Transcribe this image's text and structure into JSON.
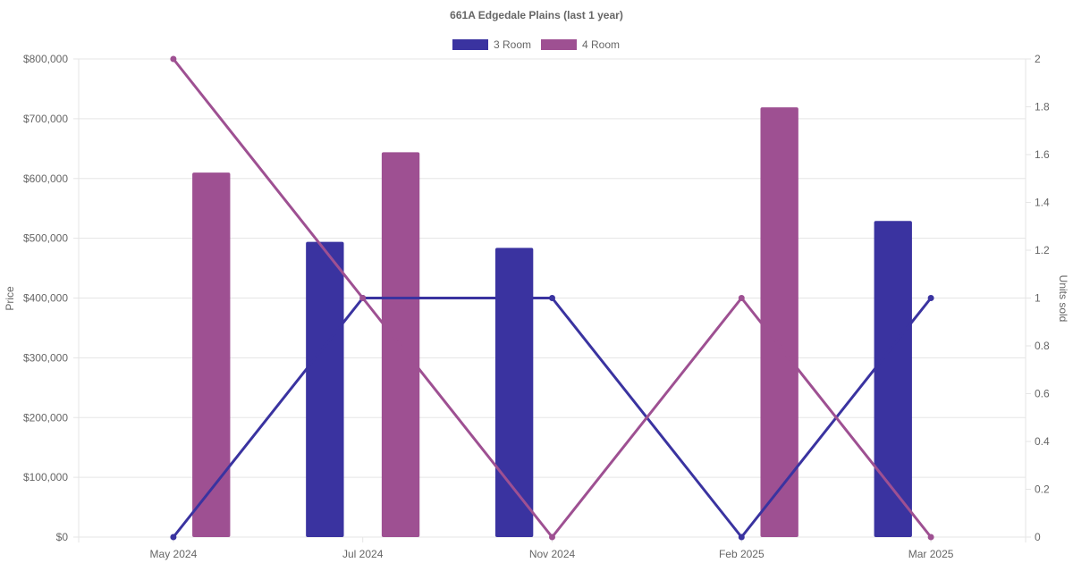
{
  "chart_data": {
    "type": "bar",
    "title": "661A Edgedale  Plains (last 1 year)",
    "categories": [
      "May 2024",
      "Jul 2024",
      "Nov 2024",
      "Feb 2025",
      "Mar 2025"
    ],
    "legend": {
      "position": "top"
    },
    "grid": true,
    "colors": {
      "3 Room": "#3a33a0",
      "4 Room": "#9e5092"
    },
    "price_series": [
      {
        "name": "3 Room",
        "values": [
          null,
          494000,
          484000,
          null,
          529000
        ]
      },
      {
        "name": "4 Room",
        "values": [
          610000,
          644000,
          null,
          719000,
          null
        ]
      }
    ],
    "units_series": [
      {
        "name": "3 Room",
        "values": [
          0,
          1,
          1,
          0,
          1
        ]
      },
      {
        "name": "4 Room",
        "values": [
          2,
          1,
          0,
          1,
          0
        ]
      }
    ],
    "y_left": {
      "label": "Price",
      "ylim": [
        0,
        800000
      ],
      "ticks": [
        "$0",
        "$100,000",
        "$200,000",
        "$300,000",
        "$400,000",
        "$500,000",
        "$600,000",
        "$700,000",
        "$800,000"
      ]
    },
    "y_right": {
      "label": "Units sold",
      "ylim": [
        0,
        2
      ],
      "ticks": [
        "0",
        "0.2",
        "0.4",
        "0.6",
        "0.8",
        "1",
        "1.2",
        "1.4",
        "1.6",
        "1.8",
        "2"
      ]
    }
  }
}
